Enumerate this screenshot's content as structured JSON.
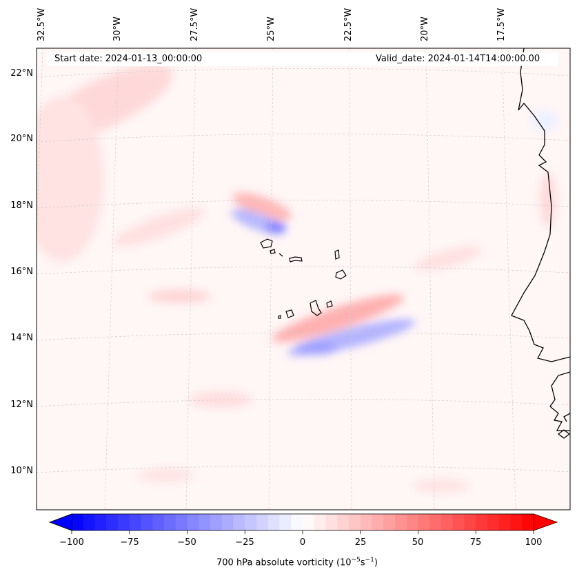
{
  "header": {
    "start_date": "Start date: 2024-01-13_00:00:00",
    "valid_date": "Valid_date: 2024-01-14T14:00:00.00"
  },
  "axes": {
    "lon_labels": [
      "32.5°W",
      "30°W",
      "27.5°W",
      "25°W",
      "22.5°W",
      "20°W",
      "17.5°W"
    ],
    "lat_labels": [
      "22°N",
      "20°N",
      "18°N",
      "16°N",
      "14°N",
      "12°N",
      "10°N"
    ]
  },
  "colorbar": {
    "label_prefix": "700 hPa absolute vorticity (10",
    "label_exp1": "−5",
    "label_mid": "s",
    "label_exp2": "−1",
    "label_suffix": ")",
    "ticks": [
      "−100",
      "−75",
      "−50",
      "−25",
      "0",
      "25",
      "50",
      "75",
      "100"
    ],
    "min": -100,
    "max": 100,
    "neg_color": "#0000ff",
    "pos_color": "#ff0000"
  },
  "colors": {
    "coast": "#000000",
    "grid": "#c8c8c8",
    "background_tint": "#fff6f6"
  }
}
